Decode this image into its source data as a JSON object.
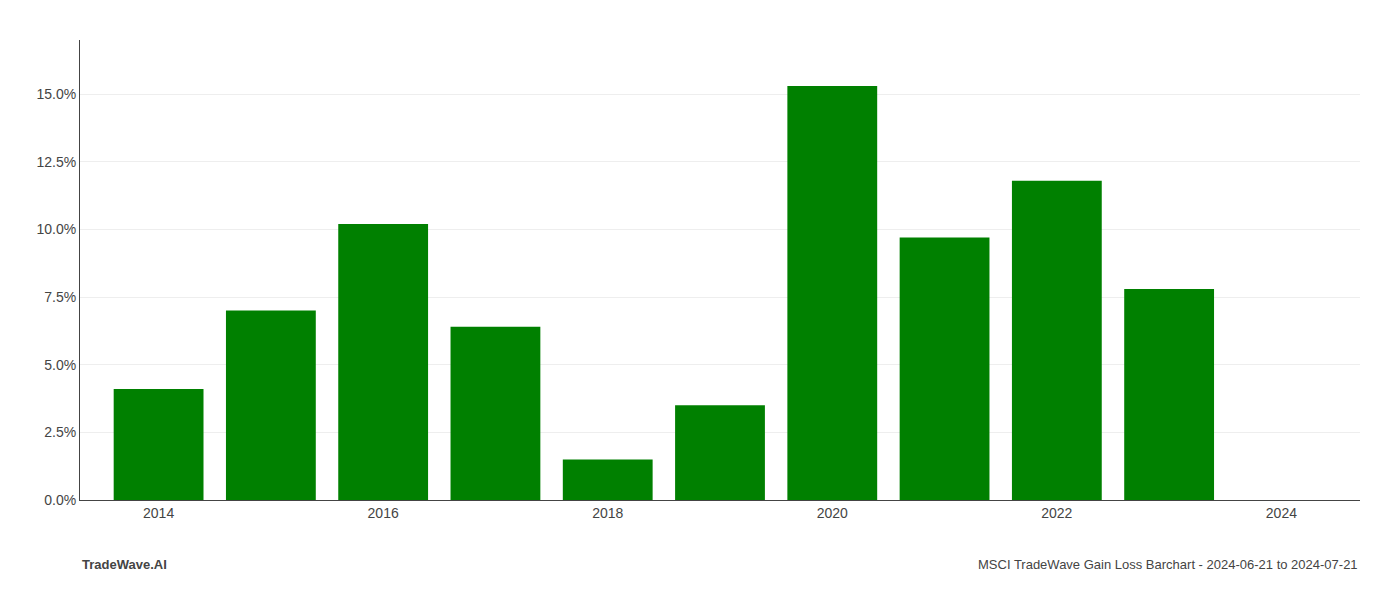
{
  "chart_data": {
    "type": "bar",
    "x": [
      2014,
      2015,
      2016,
      2017,
      2018,
      2019,
      2020,
      2021,
      2022,
      2023
    ],
    "values": [
      0.041,
      0.07,
      0.102,
      0.064,
      0.015,
      0.035,
      0.153,
      0.097,
      0.118,
      0.078
    ],
    "color": "#008000",
    "xlim": [
      2013.3,
      2024.7
    ],
    "xticks": [
      2014,
      2016,
      2018,
      2020,
      2022,
      2024
    ],
    "ylim": [
      0,
      0.17
    ],
    "yticks": [
      {
        "value": 0.0,
        "label": "0.0%"
      },
      {
        "value": 0.025,
        "label": "2.5%"
      },
      {
        "value": 0.05,
        "label": "5.0%"
      },
      {
        "value": 0.075,
        "label": "7.5%"
      },
      {
        "value": 0.1,
        "label": "10.0%"
      },
      {
        "value": 0.125,
        "label": "12.5%"
      },
      {
        "value": 0.15,
        "label": "15.0%"
      }
    ],
    "grid": true,
    "annotations": [
      "TradeWave.AI",
      "MSCI TradeWave Gain Loss Barchart - 2024-06-21 to 2024-07-21"
    ]
  }
}
